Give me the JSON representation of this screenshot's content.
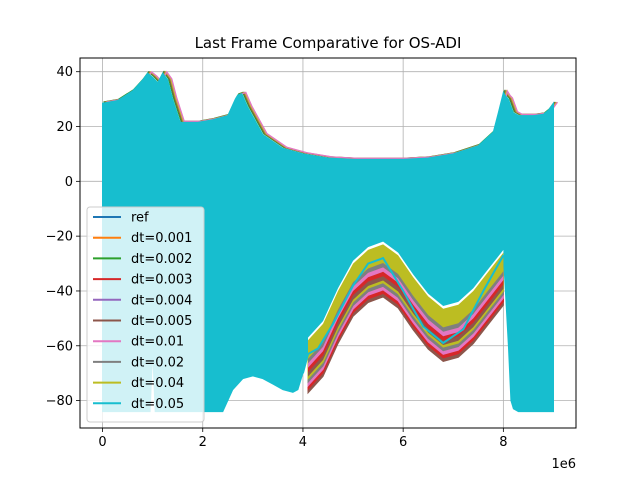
{
  "chart_data": {
    "type": "area",
    "title": "Last Frame Comparative for OS-ADI",
    "xlabel": "",
    "ylabel": "",
    "x_offset_label": "1e6",
    "xlim": [
      -0.45,
      9.45
    ],
    "ylim": [
      -90,
      45
    ],
    "xticks": [
      0,
      2,
      4,
      6,
      8
    ],
    "yticks": [
      -80,
      -60,
      -40,
      -20,
      0,
      20,
      40
    ],
    "grid": true,
    "legend_position": "lower-left",
    "series_colors": [
      "#1f77b4",
      "#ff7f0e",
      "#2ca02c",
      "#d62728",
      "#9467bd",
      "#8c564b",
      "#e377c2",
      "#7f7f7f",
      "#bcbd22",
      "#17becf"
    ],
    "series": [
      {
        "name": "ref"
      },
      {
        "name": "dt=0.001"
      },
      {
        "name": "dt=0.002"
      },
      {
        "name": "dt=0.003"
      },
      {
        "name": "dt=0.004"
      },
      {
        "name": "dt=0.005"
      },
      {
        "name": "dt=0.01"
      },
      {
        "name": "dt=0.02"
      },
      {
        "name": "dt=0.04"
      },
      {
        "name": "dt=0.05"
      }
    ],
    "upper_envelope": {
      "x": [
        0,
        0.3,
        0.6,
        0.8,
        0.9,
        1.0,
        1.1,
        1.2,
        1.3,
        1.4,
        1.55,
        1.9,
        2.2,
        2.5,
        2.6,
        2.65,
        2.7,
        2.78,
        2.9,
        3.2,
        3.6,
        4.0,
        4.5,
        5.0,
        5.5,
        6.0,
        6.5,
        7.0,
        7.5,
        7.8,
        7.9,
        8.0,
        8.05,
        8.1,
        8.2,
        8.3,
        8.6,
        8.8,
        8.9,
        9.0
      ],
      "y": [
        28.5,
        29.5,
        33,
        37,
        39.5,
        38,
        36,
        39.5,
        37,
        30,
        21.5,
        21.5,
        22.5,
        24,
        28,
        30,
        31.5,
        32,
        27,
        17,
        12,
        10,
        8.5,
        8,
        8,
        8,
        8.5,
        10,
        13,
        18,
        25,
        32.5,
        31,
        30,
        25,
        24,
        24,
        24.5,
        26,
        28.5
      ]
    },
    "lower_envelope": {
      "x": [
        0,
        0.5,
        0.95,
        1.0,
        1.05,
        1.2,
        1.5,
        1.9,
        2.2,
        2.4,
        2.6,
        2.8,
        3.0,
        3.2,
        3.4,
        3.6,
        3.8,
        3.9,
        4.0,
        4.1,
        4.3,
        4.6,
        5.0,
        5.3,
        5.6,
        6.0,
        6.4,
        6.8,
        7.2,
        7.6,
        8.0,
        8.1,
        8.15,
        8.2,
        8.3,
        8.6,
        9.0
      ],
      "y": [
        -84,
        -84,
        -84,
        -62,
        -84,
        -84,
        -84,
        -84,
        -84,
        -84,
        -76,
        -72,
        -71,
        -72,
        -74,
        -76,
        -77,
        -76,
        -70,
        -63,
        -61,
        -52,
        -38,
        -30,
        -28,
        -40,
        -53,
        -59,
        -54,
        -40,
        -27,
        -60,
        -80,
        -83,
        -84,
        -84,
        -84
      ]
    },
    "band_tops": {
      "x": [
        4.1,
        4.4,
        4.7,
        5.0,
        5.3,
        5.6,
        5.9,
        6.2,
        6.5,
        6.8,
        7.1,
        7.4,
        7.7,
        8.0
      ],
      "y": [
        -58,
        -52,
        -40,
        -30,
        -25,
        -23,
        -27,
        -35,
        -42,
        -46.5,
        -45,
        -40,
        -33,
        -26
      ]
    }
  }
}
